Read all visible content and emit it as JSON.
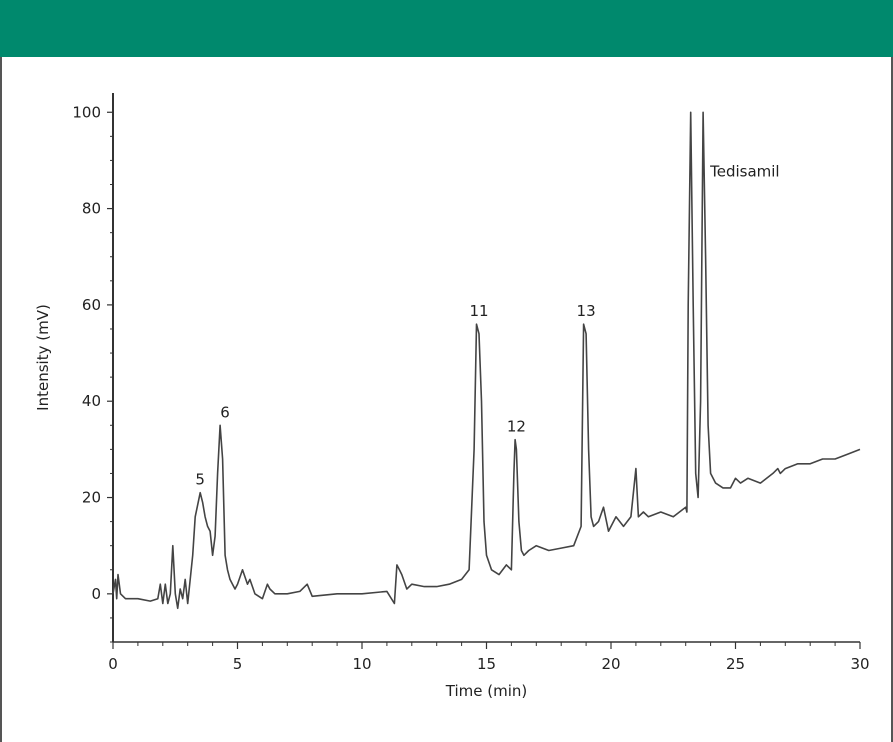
{
  "colors": {
    "header": "#00896d",
    "line": "#444444",
    "axis": "#333333"
  },
  "chart_data": {
    "type": "line",
    "title": "",
    "xlabel": "Time (min)",
    "ylabel": "Intensity (mV)",
    "xlim": [
      0,
      30
    ],
    "ylim": [
      -10,
      104
    ],
    "x_ticks": [
      0,
      5,
      10,
      15,
      20,
      25,
      30
    ],
    "y_ticks": [
      0,
      20,
      40,
      60,
      80,
      100
    ],
    "grid": false,
    "series": [
      {
        "x": [
          0,
          0.1,
          0.15,
          0.2,
          0.3,
          0.5,
          1.0,
          1.5,
          1.8,
          1.9,
          2.0,
          2.1,
          2.2,
          2.3,
          2.4,
          2.5,
          2.6,
          2.7,
          2.8,
          2.9,
          3.0,
          3.1,
          3.2,
          3.3,
          3.5,
          3.6,
          3.7,
          3.8,
          3.9,
          4.0,
          4.1,
          4.2,
          4.3,
          4.4,
          4.5,
          4.6,
          4.7,
          4.8,
          4.9,
          5.0,
          5.2,
          5.4,
          5.5,
          5.7,
          6.0,
          6.2,
          6.3,
          6.5,
          7.0,
          7.5,
          7.8,
          8.0,
          9.0,
          10.0,
          11.0,
          11.3,
          11.4,
          11.5,
          11.6,
          11.8,
          12.0,
          12.5,
          13.0,
          13.5,
          14.0,
          14.3,
          14.5,
          14.6,
          14.7,
          14.8,
          14.9,
          15.0,
          15.2,
          15.5,
          15.8,
          16.0,
          16.1,
          16.15,
          16.2,
          16.3,
          16.4,
          16.5,
          16.7,
          17.0,
          17.5,
          18.0,
          18.5,
          18.8,
          18.9,
          19.0,
          19.1,
          19.2,
          19.3,
          19.5,
          19.7,
          19.9,
          20.2,
          20.5,
          20.8,
          21.0,
          21.1,
          21.3,
          21.5,
          22.0,
          22.5,
          23.0,
          23.05,
          23.1,
          23.2,
          23.3,
          23.4,
          23.5,
          23.6,
          23.7,
          23.8,
          23.9,
          24.0,
          24.2,
          24.5,
          24.8,
          25.0,
          25.2,
          25.5,
          26.0,
          26.5,
          26.7,
          26.8,
          27.0,
          27.5,
          28.0,
          28.5,
          29.0,
          29.5,
          30.0
        ],
        "y": [
          0,
          3,
          -1,
          4,
          0,
          -1,
          -1,
          -1.5,
          -1,
          2,
          -2,
          2,
          -2,
          0,
          10,
          0,
          -3,
          1,
          -1,
          3,
          -2,
          3,
          8,
          16,
          21,
          19,
          16,
          14,
          13,
          8,
          12,
          25,
          35,
          28,
          8,
          5,
          3,
          2,
          1,
          2,
          5,
          2,
          3,
          0,
          -1,
          2,
          1,
          0,
          0,
          0.5,
          2,
          -0.5,
          0,
          0,
          0.5,
          -2,
          6,
          5,
          4,
          1,
          2,
          1.5,
          1.5,
          2,
          3,
          5,
          30,
          56,
          54,
          40,
          15,
          8,
          5,
          4,
          6,
          5,
          25,
          32,
          30,
          15,
          9,
          8,
          9,
          10,
          9,
          9.5,
          10,
          14,
          56,
          54,
          30,
          16,
          14,
          15,
          18,
          13,
          16,
          14,
          16,
          26,
          16,
          17,
          16,
          17,
          16,
          18,
          17,
          60,
          100,
          60,
          25,
          20,
          40,
          100,
          70,
          35,
          25,
          23,
          22,
          22,
          24,
          23,
          24,
          23,
          25,
          26,
          25,
          26,
          27,
          27,
          28,
          28,
          29,
          30
        ]
      }
    ],
    "annotations": [
      {
        "text": "5",
        "x": 3.5,
        "y": 21
      },
      {
        "text": "6",
        "x": 4.5,
        "y": 35
      },
      {
        "text": "11",
        "x": 14.7,
        "y": 56
      },
      {
        "text": "12",
        "x": 16.2,
        "y": 32
      },
      {
        "text": "13",
        "x": 19.0,
        "y": 56
      },
      {
        "text": "Tedisamil",
        "x": 23.9,
        "y": 85
      }
    ]
  }
}
